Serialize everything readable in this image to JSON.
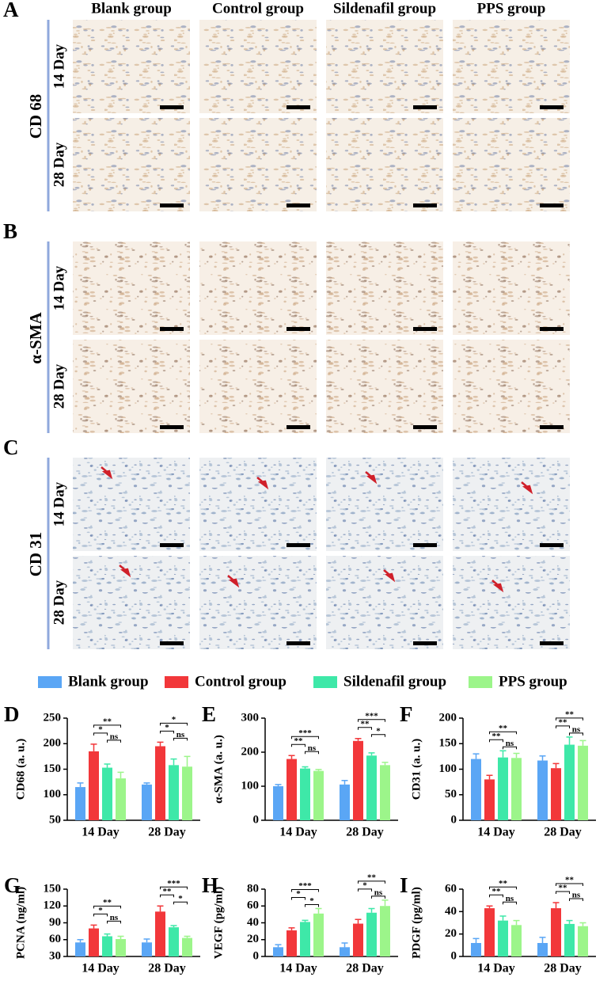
{
  "panels": [
    {
      "letter": "A",
      "marker": "CD 68"
    },
    {
      "letter": "B",
      "marker": "α-SMA"
    },
    {
      "letter": "C",
      "marker": "CD 31"
    }
  ],
  "column_headers": [
    "Blank group",
    "Control group",
    "Sildenafil group",
    "PPS group"
  ],
  "row_labels": [
    "14 Day",
    "28 Day"
  ],
  "chart_data": [
    {
      "type": "bar",
      "letter": "D",
      "ylabel": "CD68 (a. u.)",
      "categories": [
        "14 Day",
        "28 Day"
      ],
      "ylim": [
        50,
        250
      ],
      "yticks": [
        50,
        100,
        150,
        200,
        250
      ],
      "series": [
        {
          "name": "Blank group",
          "color": "#5aa6f5",
          "values": [
            115,
            120
          ],
          "errors": [
            8,
            3
          ]
        },
        {
          "name": "Control group",
          "color": "#f2373a",
          "values": [
            185,
            195
          ],
          "errors": [
            14,
            8
          ]
        },
        {
          "name": "Sildenafil group",
          "color": "#3ee8a8",
          "values": [
            153,
            158
          ],
          "errors": [
            7,
            12
          ]
        },
        {
          "name": "PPS group",
          "color": "#9cf58a",
          "values": [
            132,
            155
          ],
          "errors": [
            12,
            20
          ]
        }
      ],
      "significance": [
        [
          "*",
          "ns",
          "**"
        ],
        [
          "*",
          "ns",
          "*"
        ]
      ]
    },
    {
      "type": "bar",
      "letter": "E",
      "ylabel": "α-SMA (a. u.)",
      "categories": [
        "14 Day",
        "28 Day"
      ],
      "ylim": [
        0,
        300
      ],
      "yticks": [
        0,
        100,
        200,
        300
      ],
      "series": [
        {
          "color": "#5aa6f5",
          "values": [
            100,
            105
          ],
          "errors": [
            5,
            12
          ]
        },
        {
          "color": "#f2373a",
          "values": [
            180,
            233
          ],
          "errors": [
            10,
            7
          ]
        },
        {
          "color": "#3ee8a8",
          "values": [
            152,
            190
          ],
          "errors": [
            5,
            8
          ]
        },
        {
          "color": "#9cf58a",
          "values": [
            145,
            162
          ],
          "errors": [
            4,
            8
          ]
        }
      ],
      "significance": [
        [
          "**",
          "ns",
          "***"
        ],
        [
          "**",
          "*",
          "***"
        ]
      ]
    },
    {
      "type": "bar",
      "letter": "F",
      "ylabel": "CD31 (a. u.)",
      "categories": [
        "14 Day",
        "28 Day"
      ],
      "ylim": [
        0,
        200
      ],
      "yticks": [
        0,
        50,
        100,
        150,
        200
      ],
      "series": [
        {
          "color": "#5aa6f5",
          "values": [
            120,
            117
          ],
          "errors": [
            10,
            9
          ]
        },
        {
          "color": "#f2373a",
          "values": [
            80,
            102
          ],
          "errors": [
            8,
            9
          ]
        },
        {
          "color": "#3ee8a8",
          "values": [
            123,
            148
          ],
          "errors": [
            13,
            15
          ]
        },
        {
          "color": "#9cf58a",
          "values": [
            122,
            146
          ],
          "errors": [
            9,
            10
          ]
        }
      ],
      "significance": [
        [
          "**",
          "ns",
          "**"
        ],
        [
          "**",
          "ns",
          "**"
        ]
      ]
    },
    {
      "type": "bar",
      "letter": "G",
      "ylabel": "PCNA (ng/ml)",
      "categories": [
        "14 Day",
        "28 Day"
      ],
      "ylim": [
        30,
        150
      ],
      "yticks": [
        30,
        60,
        90,
        120,
        150
      ],
      "series": [
        {
          "color": "#5aa6f5",
          "values": [
            55,
            55
          ],
          "errors": [
            5,
            6
          ]
        },
        {
          "color": "#f2373a",
          "values": [
            80,
            110
          ],
          "errors": [
            6,
            10
          ]
        },
        {
          "color": "#3ee8a8",
          "values": [
            66,
            82
          ],
          "errors": [
            4,
            3
          ]
        },
        {
          "color": "#9cf58a",
          "values": [
            61,
            63
          ],
          "errors": [
            5,
            3
          ]
        }
      ],
      "significance": [
        [
          "*",
          "ns",
          "**"
        ],
        [
          "**",
          "*",
          "***"
        ]
      ]
    },
    {
      "type": "bar",
      "letter": "H",
      "ylabel": "VEGF (pg/ml)",
      "categories": [
        "14 Day",
        "28 Day"
      ],
      "ylim": [
        0,
        80
      ],
      "yticks": [
        0,
        20,
        40,
        60,
        80
      ],
      "series": [
        {
          "color": "#5aa6f5",
          "values": [
            11,
            11
          ],
          "errors": [
            3,
            5
          ]
        },
        {
          "color": "#f2373a",
          "values": [
            31,
            39
          ],
          "errors": [
            3,
            5
          ]
        },
        {
          "color": "#3ee8a8",
          "values": [
            41,
            52
          ],
          "errors": [
            2,
            5
          ]
        },
        {
          "color": "#9cf58a",
          "values": [
            51,
            60
          ],
          "errors": [
            6,
            7
          ]
        }
      ],
      "significance": [
        [
          "*",
          "*",
          "***"
        ],
        [
          "*",
          "ns",
          "**"
        ]
      ]
    },
    {
      "type": "bar",
      "letter": "I",
      "ylabel": "PDGF (pg/ml)",
      "categories": [
        "14 Day",
        "28 Day"
      ],
      "ylim": [
        0,
        60
      ],
      "yticks": [
        0,
        20,
        40,
        60
      ],
      "series": [
        {
          "color": "#5aa6f5",
          "values": [
            12,
            12
          ],
          "errors": [
            4,
            5
          ]
        },
        {
          "color": "#f2373a",
          "values": [
            43,
            43
          ],
          "errors": [
            2,
            5
          ]
        },
        {
          "color": "#3ee8a8",
          "values": [
            32,
            29
          ],
          "errors": [
            4,
            3
          ]
        },
        {
          "color": "#9cf58a",
          "values": [
            28,
            27
          ],
          "errors": [
            4,
            3
          ]
        }
      ],
      "significance": [
        [
          "**",
          "ns",
          "**"
        ],
        [
          "**",
          "ns",
          "**"
        ]
      ]
    }
  ]
}
